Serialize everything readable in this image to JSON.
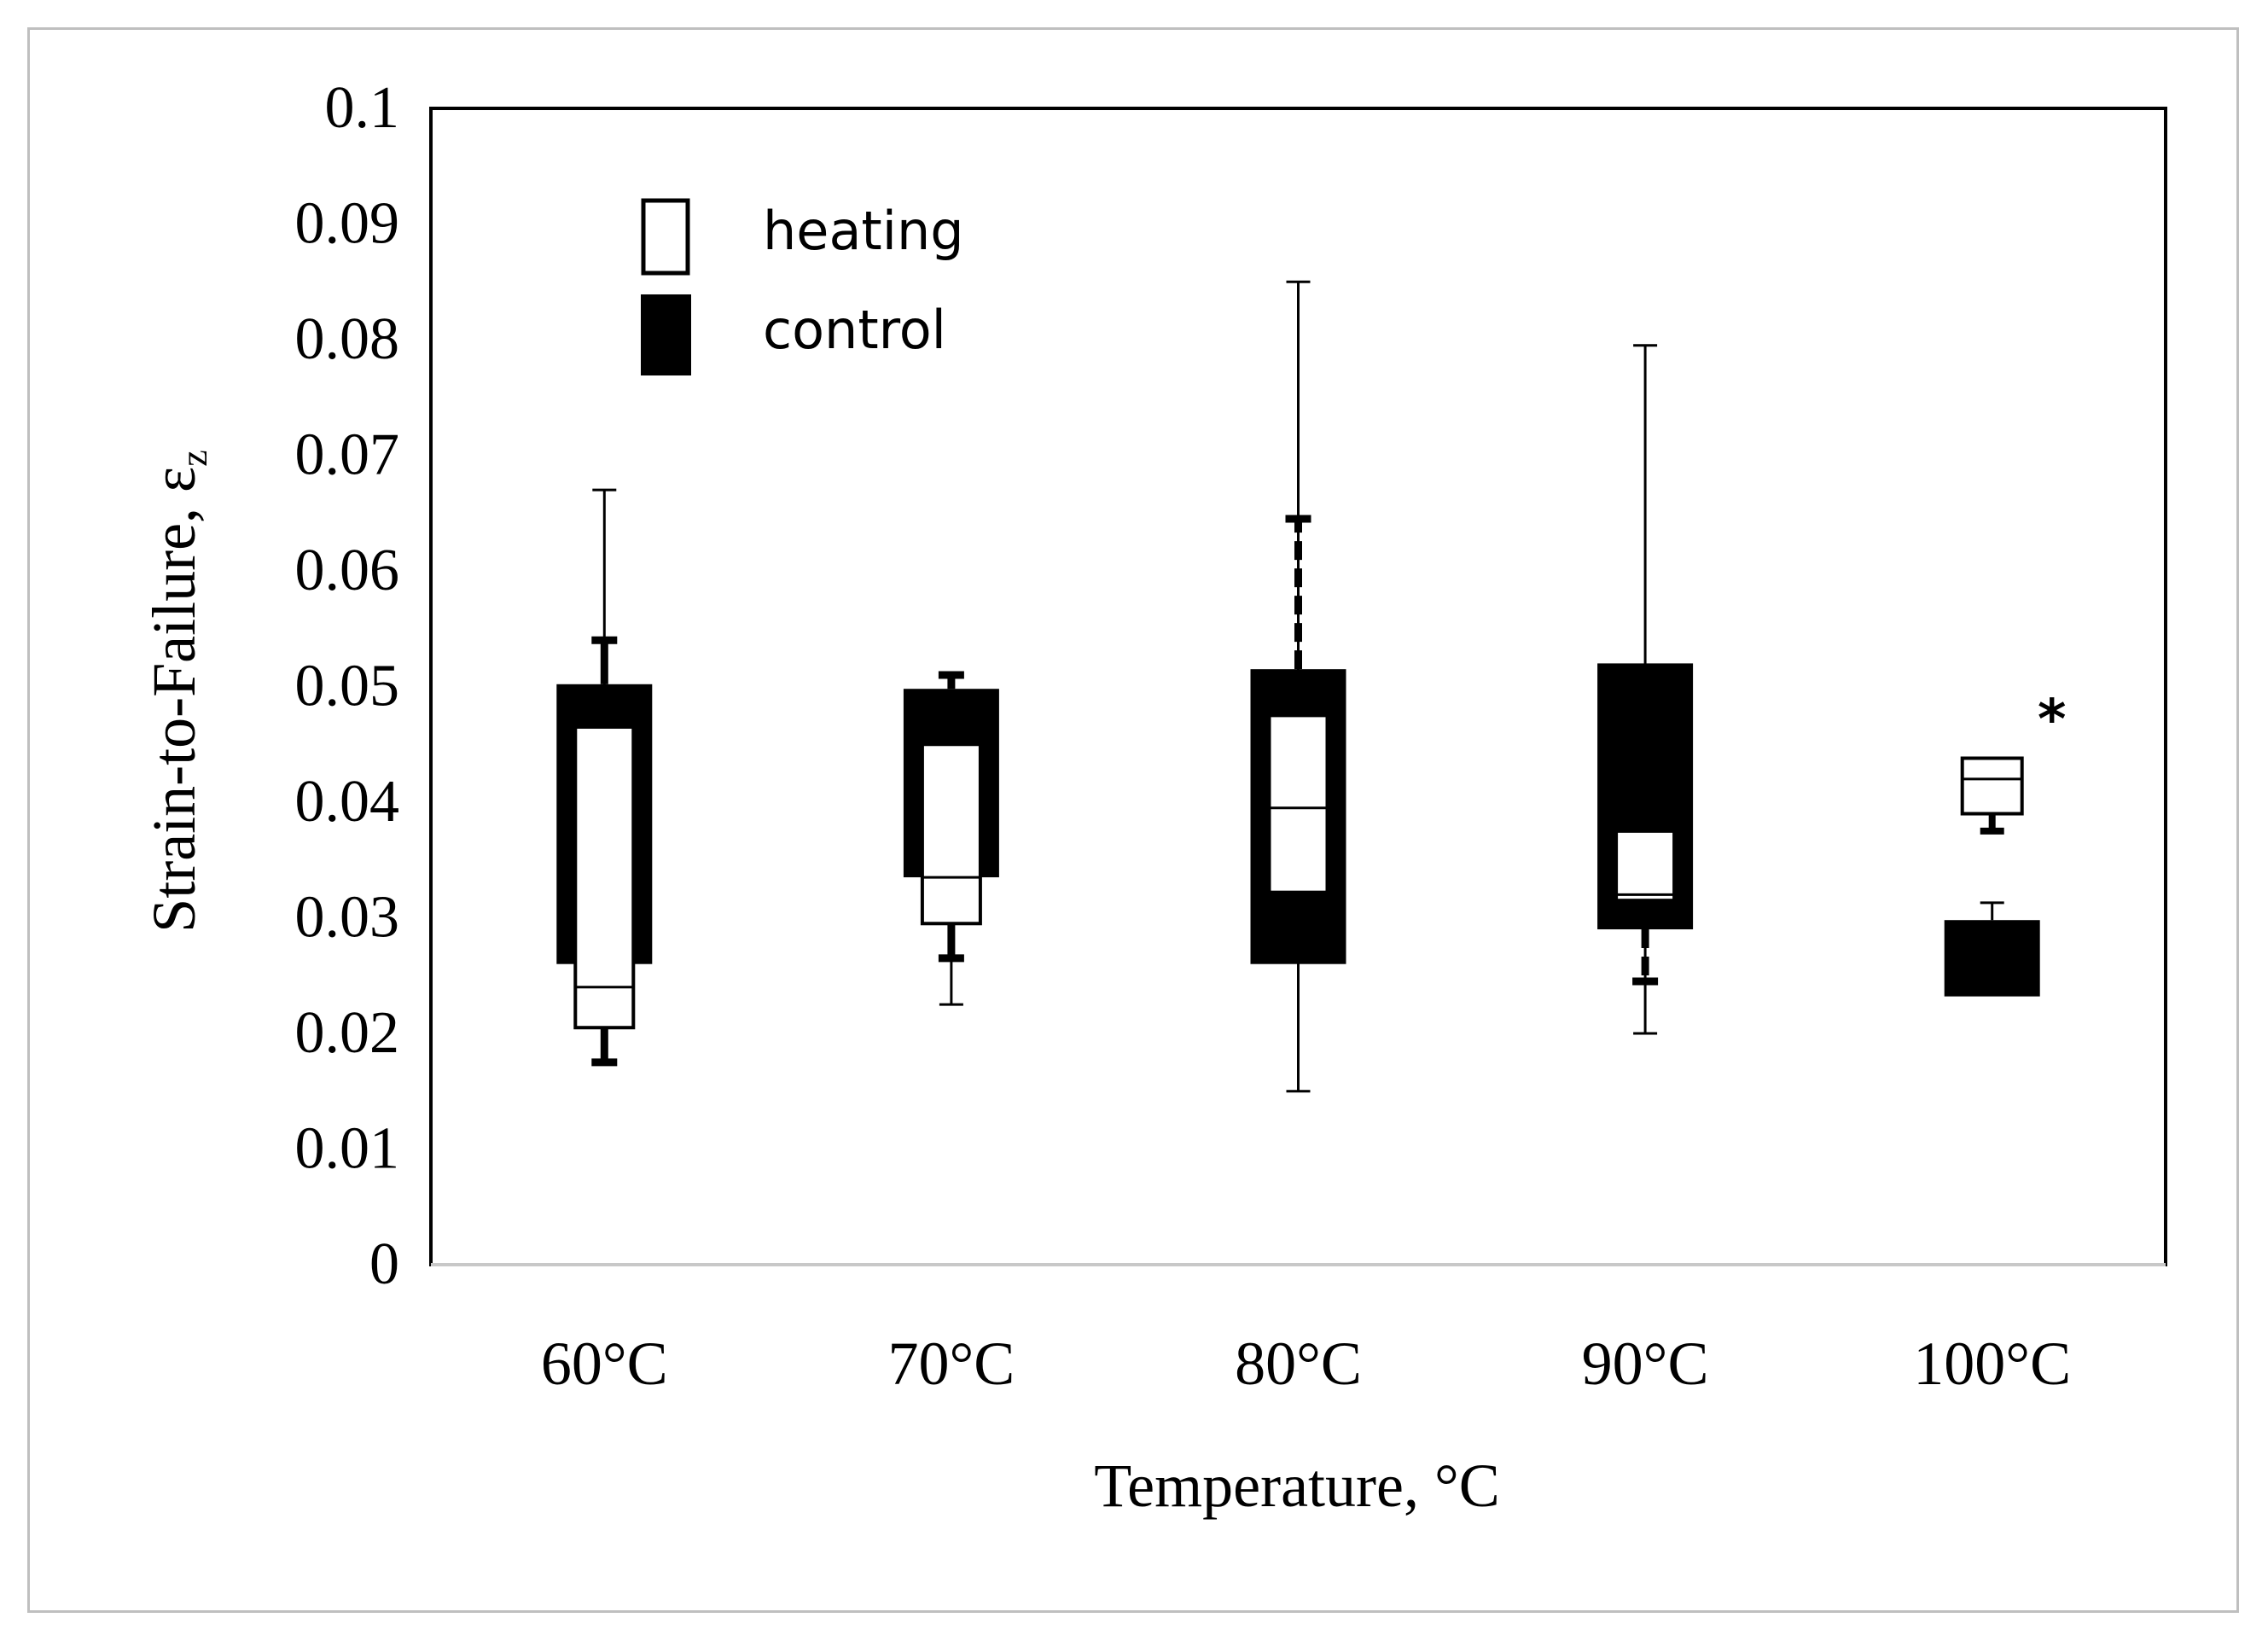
{
  "chart_data": {
    "type": "boxplot",
    "title": "",
    "xlabel": "Temperature, °C",
    "ylabel": "Strain-to-Failure, ε",
    "ylabel_subscript": "z",
    "ylim": [
      0,
      0.1
    ],
    "yticks": [
      "0",
      "0.01",
      "0.02",
      "0.03",
      "0.04",
      "0.05",
      "0.06",
      "0.07",
      "0.08",
      "0.09",
      "0.1"
    ],
    "categories": [
      "60°C",
      "70°C",
      "80°C",
      "90°C",
      "100°C"
    ],
    "legend": {
      "position": "top-left",
      "items": [
        {
          "name": "heating",
          "style": "hollow"
        },
        {
          "name": "control",
          "style": "filled"
        }
      ]
    },
    "series": [
      {
        "name": "control",
        "style": "filled",
        "boxes": [
          {
            "category": "60°C",
            "min": 0.0175,
            "q1": 0.026,
            "median": 0.0465,
            "q3": 0.0502,
            "max": 0.054
          },
          {
            "category": "70°C",
            "min": 0.0265,
            "q1": 0.0335,
            "median": 0.045,
            "q3": 0.0498,
            "max": 0.051
          },
          {
            "category": "80°C",
            "min": 0.026,
            "q1": 0.026,
            "median": 0.0322,
            "q3": 0.0515,
            "max": 0.0645
          },
          {
            "category": "90°C",
            "min": 0.0245,
            "q1": 0.029,
            "median": 0.0375,
            "q3": 0.052,
            "max": 0.052
          },
          {
            "category": "100°C",
            "min": 0.0232,
            "q1": 0.0232,
            "median": 0.026,
            "q3": 0.0298,
            "max": 0.0298
          }
        ]
      },
      {
        "name": "heating",
        "style": "hollow",
        "boxes": [
          {
            "category": "60°C",
            "min": 0.0205,
            "q1": 0.0205,
            "median": 0.024,
            "q3": 0.0465,
            "max": 0.067
          },
          {
            "category": "70°C",
            "min": 0.0225,
            "q1": 0.0295,
            "median": 0.0335,
            "q3": 0.045,
            "max": 0.045
          },
          {
            "category": "80°C",
            "min": 0.015,
            "q1": 0.0322,
            "median": 0.0395,
            "q3": 0.0475,
            "max": 0.085
          },
          {
            "category": "90°C",
            "min": 0.02,
            "q1": 0.0315,
            "median": 0.032,
            "q3": 0.0375,
            "max": 0.0795
          },
          {
            "category": "100°C",
            "min": 0.039,
            "q1": 0.039,
            "median": 0.042,
            "q3": 0.0438,
            "max": 0.0438
          }
        ]
      }
    ],
    "annotations": [
      {
        "text": "*",
        "category": "100°C",
        "y": 0.0485
      }
    ]
  }
}
